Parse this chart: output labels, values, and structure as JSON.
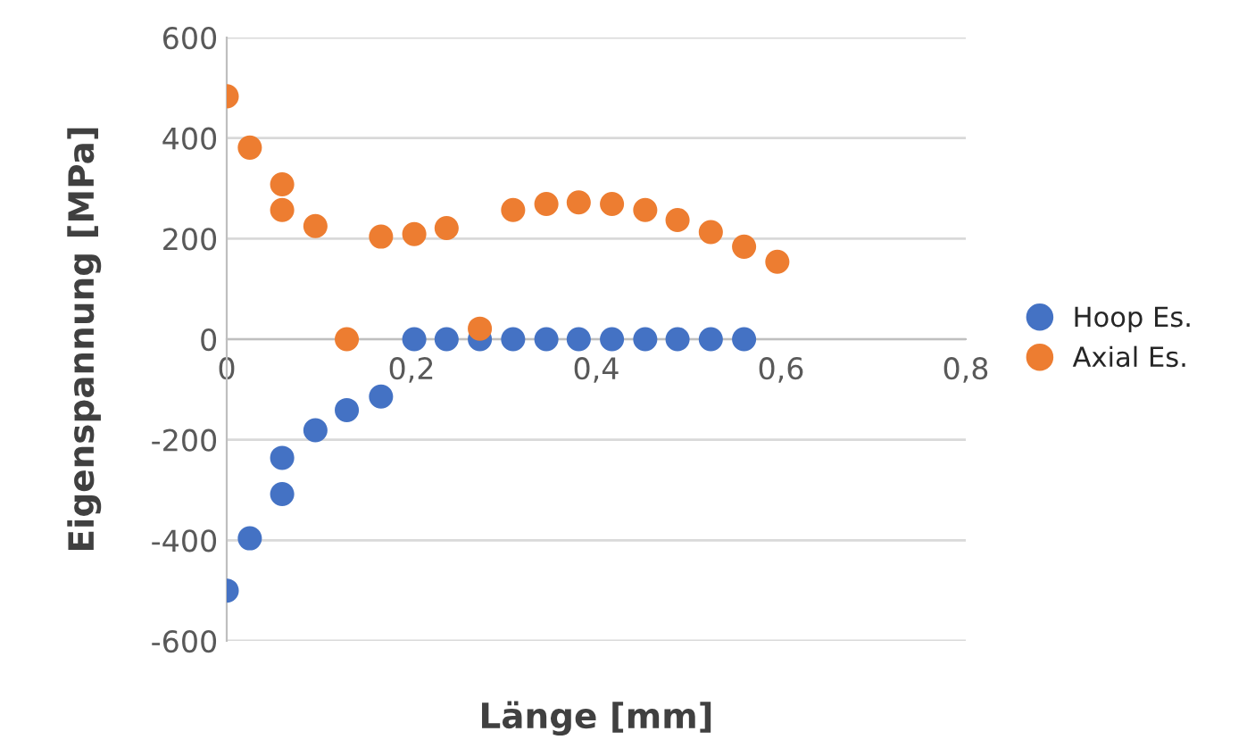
{
  "chart_data": {
    "type": "scatter",
    "xlabel": "Länge [mm]",
    "ylabel": "Eigenspannung [MPa]",
    "xlim": [
      0,
      0.8
    ],
    "ylim": [
      -600,
      600
    ],
    "xticks": [
      0,
      {
        "value": 0.2,
        "label": "0,2"
      },
      {
        "value": 0.4,
        "label": "0,4"
      },
      {
        "value": 0.6,
        "label": "0,6"
      },
      {
        "value": 0.8,
        "label": "0,8"
      }
    ],
    "yticks": [
      -600,
      -400,
      -200,
      0,
      200,
      400,
      600
    ],
    "grid": "y",
    "legend": "right",
    "marker": "circle",
    "series": [
      {
        "name": "Hoop Es.",
        "color": "#4472c4",
        "x": [
          0,
          0.025,
          0.06,
          0.06,
          0.096,
          0.13,
          0.167,
          0.203,
          0.238,
          0.274,
          0.31,
          0.346,
          0.381,
          0.417,
          0.453,
          0.488,
          0.524,
          0.56
        ],
        "values": [
          -500,
          -396,
          -308,
          -236,
          -181,
          -141,
          -114,
          0,
          0,
          0,
          0,
          0,
          0,
          0,
          0,
          0,
          0,
          0
        ]
      },
      {
        "name": "Axial Es.",
        "color": "#ed7d31",
        "x": [
          0,
          0.025,
          0.06,
          0.06,
          0.096,
          0.13,
          0.167,
          0.203,
          0.238,
          0.274,
          0.31,
          0.346,
          0.381,
          0.417,
          0.453,
          0.488,
          0.524,
          0.56,
          0.596
        ],
        "values": [
          483,
          381,
          308,
          257,
          225,
          0,
          204,
          209,
          221,
          21,
          257,
          269,
          272,
          269,
          257,
          237,
          213,
          184,
          154
        ]
      }
    ]
  }
}
